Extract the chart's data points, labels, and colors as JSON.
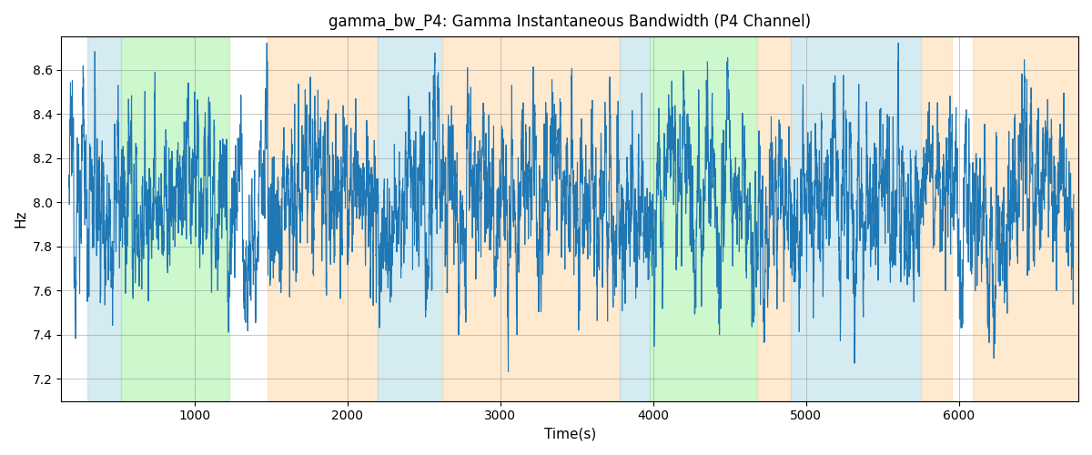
{
  "title": "gamma_bw_P4: Gamma Instantaneous Bandwidth (P4 Channel)",
  "xlabel": "Time(s)",
  "ylabel": "Hz",
  "ylim": [
    7.1,
    8.75
  ],
  "xlim": [
    130,
    6780
  ],
  "line_color": "#1f77b4",
  "line_width": 0.8,
  "grid": true,
  "background_color": "#ffffff",
  "figsize": [
    12.0,
    5.0
  ],
  "dpi": 100,
  "colored_bands": [
    {
      "xmin": 300,
      "xmax": 520,
      "color": "#add8e6",
      "alpha": 0.5
    },
    {
      "xmin": 520,
      "xmax": 1230,
      "color": "#90ee90",
      "alpha": 0.45
    },
    {
      "xmin": 1480,
      "xmax": 2200,
      "color": "#ffd8a8",
      "alpha": 0.55
    },
    {
      "xmin": 2200,
      "xmax": 2620,
      "color": "#add8e6",
      "alpha": 0.5
    },
    {
      "xmin": 2620,
      "xmax": 3780,
      "color": "#ffd8a8",
      "alpha": 0.55
    },
    {
      "xmin": 3780,
      "xmax": 3980,
      "color": "#add8e6",
      "alpha": 0.5
    },
    {
      "xmin": 3980,
      "xmax": 4680,
      "color": "#90ee90",
      "alpha": 0.45
    },
    {
      "xmin": 4680,
      "xmax": 4900,
      "color": "#ffd8a8",
      "alpha": 0.55
    },
    {
      "xmin": 4900,
      "xmax": 5750,
      "color": "#add8e6",
      "alpha": 0.5
    },
    {
      "xmin": 5750,
      "xmax": 5950,
      "color": "#ffd8a8",
      "alpha": 0.55
    },
    {
      "xmin": 6090,
      "xmax": 6780,
      "color": "#ffd8a8",
      "alpha": 0.55
    }
  ],
  "xticks": [
    1000,
    2000,
    3000,
    4000,
    5000,
    6000
  ],
  "yticks": [
    7.2,
    7.4,
    7.6,
    7.8,
    8.0,
    8.2,
    8.4,
    8.6
  ],
  "seed": 12345,
  "num_points": 6600,
  "x_start": 180,
  "x_end": 6750
}
